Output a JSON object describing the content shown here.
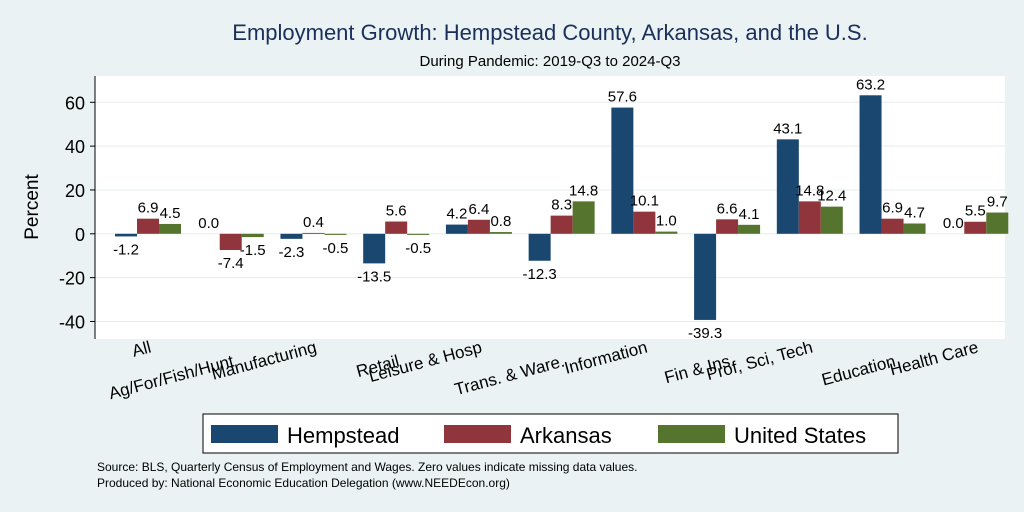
{
  "chart_data": {
    "type": "bar",
    "title": "Employment Growth: Hempstead County, Arkansas, and the U.S.",
    "subtitle": "During Pandemic: 2019-Q3 to 2024-Q3",
    "ylabel": "Percent",
    "xlabel": "",
    "ylim": [
      -48,
      72
    ],
    "yticks": [
      60,
      40,
      20,
      0,
      -20,
      -40
    ],
    "grid": true,
    "legend_position": "bottom",
    "categories": [
      "All",
      "Ag/For/Fish/Hunt",
      "Manufacturing",
      "Retail",
      "Leisure & Hosp",
      "Trans. & Ware.",
      "Information",
      "Fin & Ins",
      "Prof, Sci, Tech",
      "Education",
      "Health Care"
    ],
    "series": [
      {
        "name": "Hempstead",
        "color": "#1a476f",
        "values": [
          -1.2,
          0.0,
          -2.3,
          -13.5,
          4.2,
          -12.3,
          57.6,
          -39.3,
          43.1,
          63.2,
          0.0
        ]
      },
      {
        "name": "Arkansas",
        "color": "#90353b",
        "values": [
          6.9,
          -7.4,
          0.4,
          5.6,
          6.4,
          8.3,
          10.1,
          6.6,
          14.8,
          6.9,
          5.5
        ]
      },
      {
        "name": "United States",
        "color": "#55752f",
        "values": [
          4.5,
          -1.5,
          -0.5,
          -0.5,
          0.8,
          14.8,
          1.0,
          4.1,
          12.4,
          4.7,
          9.7
        ]
      }
    ],
    "source": "Source: BLS, Quarterly Census of Employment and Wages. Zero values indicate missing data values.",
    "produced_by": "Produced by: National Economic Education Delegation (www.NEEDEcon.org)"
  }
}
